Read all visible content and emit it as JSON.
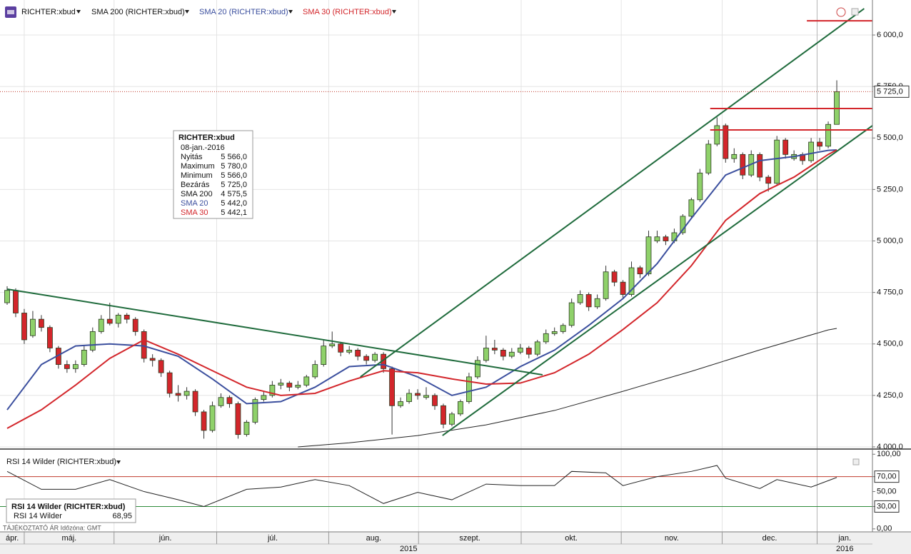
{
  "chart_data": [
    {
      "type": "candlestick",
      "title": "RICHTER:xbud",
      "color_up": "#8fd16a",
      "color_down": "#d3262b",
      "xlim": [
        -0.835,
        101.17
      ],
      "ylim": [
        3993,
        6170
      ],
      "yticks": [
        {
          "value": 4000,
          "label": "4 000,0"
        },
        {
          "value": 4250,
          "label": "4 250,0"
        },
        {
          "value": 4500,
          "label": "4 500,0"
        },
        {
          "value": 4750,
          "label": "4 750,0"
        },
        {
          "value": 5000,
          "label": "5 000,0"
        },
        {
          "value": 5250,
          "label": "5 250,0"
        },
        {
          "value": 5500,
          "label": "5 500,0"
        },
        {
          "value": 5750,
          "label": "5 750,0"
        },
        {
          "value": 6000,
          "label": "6 000,0"
        }
      ],
      "xticks": [
        {
          "value": -0.835,
          "label": "ápr."
        },
        {
          "value": 2,
          "label": "máj."
        },
        {
          "value": 12.5,
          "label": "jún."
        },
        {
          "value": 24.5,
          "label": "júl."
        },
        {
          "value": 37.6,
          "label": "aug."
        },
        {
          "value": 48.1,
          "label": "szept."
        },
        {
          "value": 60.1,
          "label": "okt."
        },
        {
          "value": 71.8,
          "label": "nov."
        },
        {
          "value": 83.6,
          "label": "dec."
        },
        {
          "value": 94.7,
          "label": "jan."
        }
      ],
      "years": [
        {
          "value": -0.835,
          "label": "2015"
        },
        {
          "value": 94.7,
          "label": "2016"
        }
      ],
      "open": [
        4700,
        4760,
        4650,
        4540,
        4620,
        4580,
        4480,
        4400,
        4380,
        4400,
        4470,
        4560,
        4620,
        4600,
        4640,
        4620,
        4560,
        4430,
        4420,
        4360,
        4260,
        4250,
        4270,
        4170,
        4080,
        4200,
        4240,
        4210,
        4060,
        4120,
        4230,
        4250,
        4300,
        4310,
        4290,
        4300,
        4340,
        4400,
        4490,
        4500,
        4460,
        4470,
        4440,
        4420,
        4450,
        4380,
        4200,
        4220,
        4260,
        4240,
        4250,
        4200,
        4110,
        4160,
        4220,
        4340,
        4420,
        4480,
        4470,
        4440,
        4460,
        4480,
        4450,
        4510,
        4550,
        4560,
        4590,
        4700,
        4740,
        4680,
        4720,
        4850,
        4800,
        4740,
        4870,
        4840,
        5000,
        5020,
        5000,
        5040,
        5120,
        5200,
        5330,
        5470,
        5560,
        5400,
        5420,
        5320,
        5420,
        5310,
        5280,
        5490,
        5400,
        5420,
        5390,
        5480,
        5460,
        5566
      ],
      "high": [
        4780,
        4770,
        4670,
        4660,
        4640,
        4590,
        4490,
        4420,
        4420,
        4490,
        4580,
        4640,
        4700,
        4650,
        4650,
        4630,
        4570,
        4450,
        4430,
        4370,
        4300,
        4290,
        4280,
        4180,
        4220,
        4260,
        4250,
        4220,
        4130,
        4240,
        4270,
        4320,
        4330,
        4320,
        4320,
        4350,
        4420,
        4520,
        4560,
        4510,
        4490,
        4480,
        4450,
        4460,
        4460,
        4390,
        4240,
        4280,
        4280,
        4290,
        4260,
        4210,
        4170,
        4230,
        4360,
        4440,
        4540,
        4520,
        4480,
        4480,
        4500,
        4490,
        4520,
        4570,
        4580,
        4600,
        4720,
        4760,
        4750,
        4740,
        4880,
        4860,
        4810,
        4900,
        4880,
        5050,
        5050,
        5030,
        5060,
        5130,
        5210,
        5350,
        5490,
        5600,
        5570,
        5450,
        5430,
        5440,
        5430,
        5320,
        5510,
        5500,
        5440,
        5430,
        5500,
        5500,
        5580,
        5780
      ],
      "low": [
        4690,
        4630,
        4500,
        4530,
        4560,
        4460,
        4380,
        4360,
        4360,
        4390,
        4460,
        4550,
        4590,
        4580,
        4600,
        4540,
        4410,
        4390,
        4340,
        4240,
        4220,
        4230,
        4150,
        4040,
        4070,
        4190,
        4190,
        4040,
        4050,
        4110,
        4220,
        4240,
        4280,
        4270,
        4280,
        4290,
        4330,
        4390,
        4480,
        4440,
        4450,
        4420,
        4400,
        4410,
        4360,
        4060,
        4190,
        4210,
        4230,
        4230,
        4180,
        4090,
        4100,
        4150,
        4210,
        4330,
        4410,
        4450,
        4420,
        4430,
        4450,
        4430,
        4440,
        4500,
        4540,
        4550,
        4580,
        4690,
        4660,
        4670,
        4710,
        4780,
        4720,
        4730,
        4820,
        4830,
        4990,
        4980,
        4990,
        5030,
        5110,
        5190,
        5320,
        5460,
        5380,
        5380,
        5300,
        5310,
        5290,
        5240,
        5270,
        5400,
        5390,
        5370,
        5380,
        5440,
        5450,
        5566
      ],
      "close": [
        4760,
        4650,
        4520,
        4620,
        4580,
        4480,
        4400,
        4380,
        4400,
        4470,
        4560,
        4620,
        4600,
        4640,
        4620,
        4560,
        4430,
        4420,
        4360,
        4260,
        4250,
        4270,
        4170,
        4080,
        4200,
        4240,
        4210,
        4060,
        4120,
        4230,
        4250,
        4300,
        4310,
        4290,
        4300,
        4340,
        4400,
        4490,
        4500,
        4460,
        4470,
        4440,
        4420,
        4450,
        4380,
        4200,
        4220,
        4260,
        4250,
        4250,
        4200,
        4110,
        4160,
        4220,
        4340,
        4420,
        4480,
        4470,
        4440,
        4460,
        4480,
        4450,
        4510,
        4550,
        4560,
        4590,
        4700,
        4740,
        4680,
        4720,
        4850,
        4800,
        4740,
        4870,
        4840,
        5020,
        5020,
        5000,
        5040,
        5120,
        5200,
        5330,
        5470,
        5560,
        5400,
        5420,
        5320,
        5420,
        5310,
        5280,
        5490,
        5420,
        5420,
        5390,
        5480,
        5460,
        5566,
        5725
      ],
      "overlays": [
        {
          "name": "SMA 200 (RICHTER:xbud)",
          "color": "#222222",
          "width": 1,
          "x": [
            34,
            40,
            48,
            56,
            64,
            72,
            80,
            88,
            96,
            97
          ],
          "values": [
            4000,
            4020,
            4055,
            4107,
            4177,
            4270,
            4367,
            4471,
            4568,
            4575.5
          ]
        },
        {
          "name": "SMA 20 (RICHTER:xbud)",
          "color": "#3b4f9e",
          "width": 2,
          "x": [
            0,
            4,
            8,
            12,
            16,
            20,
            24,
            28,
            32,
            36,
            40,
            44,
            48,
            52,
            56,
            60,
            64,
            68,
            72,
            76,
            80,
            84,
            88,
            92,
            96,
            97
          ],
          "values": [
            4180,
            4400,
            4490,
            4500,
            4490,
            4440,
            4330,
            4210,
            4220,
            4290,
            4390,
            4400,
            4340,
            4250,
            4290,
            4390,
            4470,
            4590,
            4720,
            4890,
            5110,
            5320,
            5390,
            5410,
            5440,
            5442
          ]
        },
        {
          "name": "SMA 30 (RICHTER:xbud)",
          "color": "#d3262b",
          "width": 2,
          "x": [
            0,
            4,
            8,
            12,
            16,
            20,
            24,
            28,
            32,
            36,
            40,
            44,
            48,
            52,
            56,
            60,
            64,
            68,
            72,
            76,
            80,
            84,
            88,
            92,
            96,
            97
          ],
          "values": [
            4090,
            4180,
            4300,
            4430,
            4520,
            4450,
            4370,
            4290,
            4250,
            4260,
            4320,
            4370,
            4360,
            4330,
            4305,
            4310,
            4360,
            4450,
            4570,
            4700,
            4880,
            5100,
            5230,
            5310,
            5420,
            5442.1
          ]
        }
      ],
      "trendlines": [
        {
          "color": "#1f6b3c",
          "x": [
            0,
            62.6
          ],
          "values": [
            4766,
            4350
          ]
        },
        {
          "color": "#1f6b3c",
          "x": [
            41.3,
            100.2
          ],
          "values": [
            4340,
            6128
          ]
        },
        {
          "color": "#1f6b3c",
          "x": [
            50.9,
            101.17
          ],
          "values": [
            4055,
            5560
          ]
        },
        {
          "color": "#d3262b",
          "x": [
            93.5,
            101.17
          ],
          "values": [
            6069,
            6069
          ]
        },
        {
          "color": "#d3262b",
          "x": [
            82.2,
            101.17
          ],
          "values": [
            5643,
            5643
          ]
        },
        {
          "color": "#d3262b",
          "x": [
            82.2,
            101.17
          ],
          "values": [
            5539,
            5539
          ]
        }
      ],
      "last": {
        "value": 5725,
        "label": "5 725,0"
      }
    },
    {
      "type": "line",
      "title": "RSI 14 Wilder (RICHTER:xbud)",
      "xlim": [
        -0.835,
        101.17
      ],
      "ylim": [
        -4,
        106
      ],
      "yticks": [
        {
          "value": 100,
          "label": "100,00"
        },
        {
          "value": 70,
          "label": "70,00"
        },
        {
          "value": 50,
          "label": "50,00"
        },
        {
          "value": 30,
          "label": "30,00"
        },
        {
          "value": 0,
          "label": "0,00"
        }
      ],
      "levels": [
        {
          "value": 70,
          "color": "#c0392b"
        },
        {
          "value": 30,
          "color": "#2e8b3a"
        }
      ],
      "series": [
        {
          "name": "RSI 14 Wilder",
          "color": "#222222",
          "x": [
            0,
            4,
            8,
            12,
            16,
            20,
            23,
            28,
            32,
            36,
            40,
            44,
            48,
            52,
            56,
            60,
            64,
            66,
            70,
            72,
            76,
            80,
            83,
            84,
            88,
            90,
            94,
            97
          ],
          "values": [
            77,
            53,
            53,
            66,
            50,
            39,
            30,
            53,
            56,
            66,
            58,
            34,
            49,
            39,
            60,
            58,
            58,
            77,
            75,
            58,
            70,
            77,
            85,
            68,
            54,
            66,
            56,
            68.95
          ],
          "value_labels": [
            null,
            null,
            null,
            null,
            null,
            null,
            null,
            null,
            null,
            null,
            null,
            null,
            null,
            null,
            null,
            null,
            null,
            null,
            null,
            null,
            null,
            null,
            null,
            null,
            null,
            null,
            null,
            "68,95"
          ]
        }
      ]
    }
  ],
  "info_box": {
    "title": "RICHTER:xbud",
    "date": "08-jan.-2016",
    "rows": [
      {
        "label": "Nyitás",
        "value": "5 566,0",
        "color": "#111111"
      },
      {
        "label": "Maximum",
        "value": "5 780,0",
        "color": "#111111"
      },
      {
        "label": "Minimum",
        "value": "5 566,0",
        "color": "#111111"
      },
      {
        "label": "Bezárás",
        "value": "5 725,0",
        "color": "#111111"
      },
      {
        "label": "SMA 200",
        "value": "4 575,5",
        "color": "#111111"
      },
      {
        "label": "SMA 20",
        "value": "5 442,0",
        "color": "#3b4f9e"
      },
      {
        "label": "SMA 30",
        "value": "5 442,1",
        "color": "#d3262b"
      }
    ]
  },
  "footer_note": "TÁJÉKOZTATÓ ÁR  Időzóna: GMT"
}
